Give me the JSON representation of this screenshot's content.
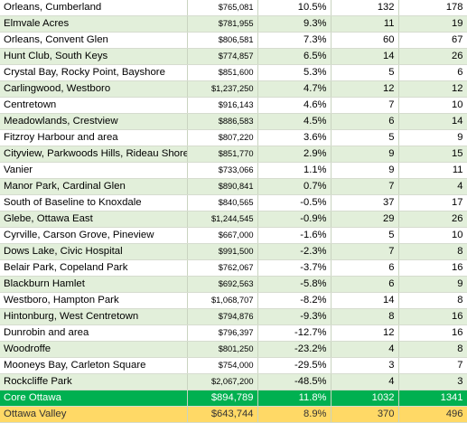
{
  "rows": [
    {
      "name": "Orleans, Cumberland",
      "price": "$765,081",
      "change": "10.5%",
      "col4": "132",
      "col5": "178"
    },
    {
      "name": "Elmvale Acres",
      "price": "$781,955",
      "change": "9.3%",
      "col4": "11",
      "col5": "19"
    },
    {
      "name": "Orleans, Convent Glen",
      "price": "$806,581",
      "change": "7.3%",
      "col4": "60",
      "col5": "67"
    },
    {
      "name": "Hunt Club, South Keys",
      "price": "$774,857",
      "change": "6.5%",
      "col4": "14",
      "col5": "26"
    },
    {
      "name": "Crystal Bay, Rocky Point, Bayshore",
      "price": "$851,600",
      "change": "5.3%",
      "col4": "5",
      "col5": "6"
    },
    {
      "name": "Carlingwood, Westboro",
      "price": "$1,237,250",
      "change": "4.7%",
      "col4": "12",
      "col5": "12"
    },
    {
      "name": "Centretown",
      "price": "$916,143",
      "change": "4.6%",
      "col4": "7",
      "col5": "10"
    },
    {
      "name": "Meadowlands, Crestview",
      "price": "$886,583",
      "change": "4.5%",
      "col4": "6",
      "col5": "14"
    },
    {
      "name": "Fitzroy Harbour and area",
      "price": "$807,220",
      "change": "3.6%",
      "col4": "5",
      "col5": "9"
    },
    {
      "name": "Cityview, Parkwoods Hills, Rideau Shore",
      "price": "$851,770",
      "change": "2.9%",
      "col4": "9",
      "col5": "15"
    },
    {
      "name": "Vanier",
      "price": "$733,066",
      "change": "1.1%",
      "col4": "9",
      "col5": "11"
    },
    {
      "name": "Manor Park, Cardinal Glen",
      "price": "$890,841",
      "change": "0.7%",
      "col4": "7",
      "col5": "4"
    },
    {
      "name": "South of Baseline to Knoxdale",
      "price": "$840,565",
      "change": "-0.5%",
      "col4": "37",
      "col5": "17"
    },
    {
      "name": "Glebe, Ottawa East",
      "price": "$1,244,545",
      "change": "-0.9%",
      "col4": "29",
      "col5": "26"
    },
    {
      "name": "Cyrville, Carson Grove, Pineview",
      "price": "$667,000",
      "change": "-1.6%",
      "col4": "5",
      "col5": "10"
    },
    {
      "name": "Dows Lake, Civic Hospital",
      "price": "$991,500",
      "change": "-2.3%",
      "col4": "7",
      "col5": "8"
    },
    {
      "name": "Belair Park, Copeland Park",
      "price": "$762,067",
      "change": "-3.7%",
      "col4": "6",
      "col5": "16"
    },
    {
      "name": "Blackburn Hamlet",
      "price": "$692,563",
      "change": "-5.8%",
      "col4": "6",
      "col5": "9"
    },
    {
      "name": "Westboro, Hampton Park",
      "price": "$1,068,707",
      "change": "-8.2%",
      "col4": "14",
      "col5": "8"
    },
    {
      "name": "Hintonburg, West Centretown",
      "price": "$794,876",
      "change": "-9.3%",
      "col4": "8",
      "col5": "16"
    },
    {
      "name": "Dunrobin and area",
      "price": "$796,397",
      "change": "-12.7%",
      "col4": "12",
      "col5": "16"
    },
    {
      "name": "Woodroffe",
      "price": "$801,250",
      "change": "-23.2%",
      "col4": "4",
      "col5": "8"
    },
    {
      "name": "Mooneys Bay, Carleton Square",
      "price": "$754,000",
      "change": "-29.5%",
      "col4": "3",
      "col5": "7"
    },
    {
      "name": "Rockcliffe Park",
      "price": "$2,067,200",
      "change": "-48.5%",
      "col4": "4",
      "col5": "3"
    }
  ],
  "summary": {
    "core": {
      "name": "Core Ottawa",
      "price": "$894,789",
      "change": "11.8%",
      "col4": "1032",
      "col5": "1341",
      "color": "#00b050"
    },
    "valley": {
      "name": "Ottawa Valley",
      "price": "$643,744",
      "change": "8.9%",
      "col4": "370",
      "col5": "496",
      "color": "#ffd966"
    }
  },
  "colors": {
    "band": "#e2efda",
    "plain": "#ffffff"
  }
}
